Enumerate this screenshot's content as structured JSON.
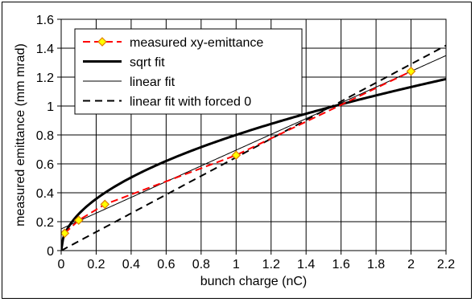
{
  "chart_data": {
    "type": "line",
    "xlabel": "bunch charge (nC)",
    "ylabel": "measured emittance (mm mrad)",
    "xlim": [
      0,
      2.2
    ],
    "ylim": [
      0,
      1.6
    ],
    "x_ticks": [
      0,
      0.2,
      0.4,
      0.6,
      0.8,
      1,
      1.2,
      1.4,
      1.6,
      1.8,
      2,
      2.2
    ],
    "y_ticks": [
      0,
      0.2,
      0.4,
      0.6,
      0.8,
      1,
      1.2,
      1.4,
      1.6
    ],
    "x_tick_labels": [
      "0",
      "0.2",
      "0.4",
      "0.6",
      "0.8",
      "1",
      "1.2",
      "1.4",
      "1.6",
      "1.8",
      "2",
      "2.2"
    ],
    "y_tick_labels": [
      "0",
      "0.2",
      "0.4",
      "0.6",
      "0.8",
      "1",
      "1.2",
      "1.4",
      "1.6"
    ],
    "grid": true,
    "legend_position": "top-left",
    "series": [
      {
        "name": "measured xy-emittance",
        "style": "red-dashed-with-markers",
        "color": "#ff0000",
        "marker_fill": "#ffff00",
        "marker_edge": "#e08000",
        "x": [
          0.02,
          0.1,
          0.25,
          1.0,
          2.0
        ],
        "y": [
          0.12,
          0.21,
          0.32,
          0.66,
          1.24
        ]
      },
      {
        "name": "sqrt fit",
        "style": "thick-solid",
        "color": "#000000",
        "function": "sqrt",
        "coefficient": 0.8,
        "x_range": [
          0,
          2.2
        ]
      },
      {
        "name": "linear fit",
        "style": "thin-solid",
        "color": "#000000",
        "function": "linear",
        "intercept": 0.15,
        "slope": 0.545,
        "x_range": [
          0,
          2.2
        ]
      },
      {
        "name": "linear fit with forced 0",
        "style": "dashed",
        "color": "#000000",
        "function": "linear",
        "intercept": 0,
        "slope": 0.645,
        "x_range": [
          0,
          2.2
        ]
      }
    ]
  }
}
